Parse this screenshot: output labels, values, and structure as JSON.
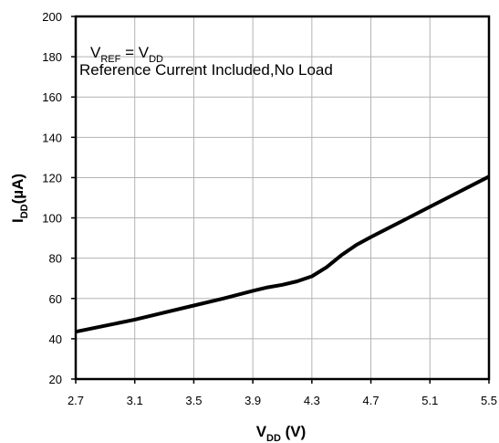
{
  "chart_data": {
    "type": "line",
    "title": "",
    "xlabel": {
      "main": "V",
      "sub": "DD",
      "unit": " (V)"
    },
    "ylabel": {
      "main": "I",
      "sub": "DD",
      "unit": "(µA)"
    },
    "xlim": [
      2.7,
      5.5
    ],
    "ylim": [
      20,
      200
    ],
    "x_ticks": [
      "2.7",
      "3.1",
      "3.5",
      "3.9",
      "4.3",
      "4.7",
      "5.1",
      "5.5"
    ],
    "y_ticks": [
      "20",
      "40",
      "60",
      "80",
      "100",
      "120",
      "140",
      "160",
      "180",
      "200"
    ],
    "grid": true,
    "annotation": {
      "line1": {
        "a": "V",
        "a_sub": "REF",
        "eq": " = V",
        "b_sub": "DD"
      },
      "line2": "Reference Current Included,No Load"
    },
    "series": [
      {
        "x": [
          2.7,
          2.9,
          3.1,
          3.3,
          3.5,
          3.7,
          3.9,
          4.0,
          4.1,
          4.2,
          4.3,
          4.4,
          4.5,
          4.6,
          4.7,
          4.9,
          5.1,
          5.3,
          5.5
        ],
        "y": [
          43.5,
          46.5,
          49.5,
          53,
          56.5,
          60,
          63.8,
          65.5,
          66.8,
          68.5,
          71,
          75.5,
          81.5,
          86.5,
          90.5,
          98,
          105.5,
          113,
          120.5
        ]
      }
    ],
    "line_color": "#000000"
  }
}
